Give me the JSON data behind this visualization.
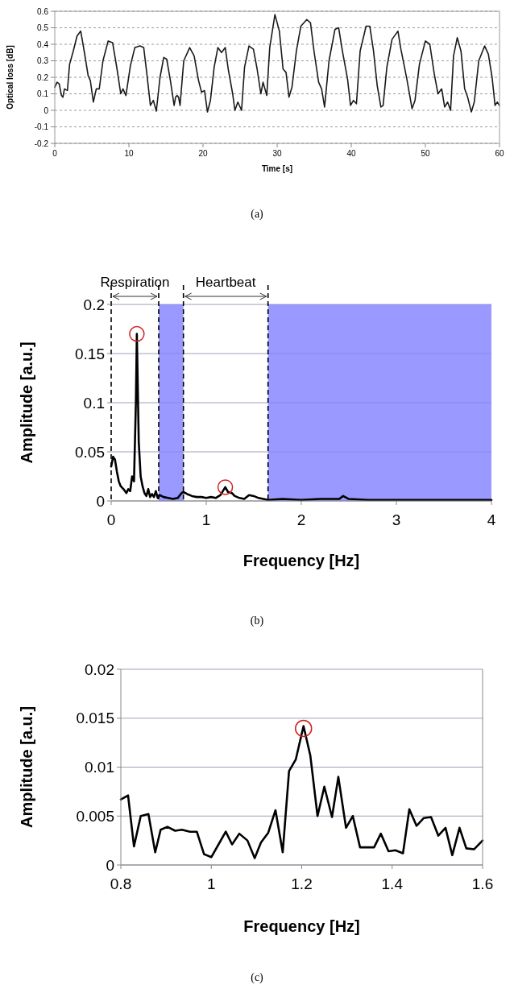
{
  "chart_data": [
    {
      "type": "line",
      "xlabel": "Time [s]",
      "ylabel": "Optical loss [dB]",
      "annotations": [
        "(a)"
      ],
      "xlim": [
        0,
        60
      ],
      "xticks": [
        0,
        10,
        20,
        30,
        40,
        50,
        60
      ],
      "ylim": [
        -0.2,
        0.6
      ],
      "yticks": [
        -0.2,
        -0.1,
        0,
        0.1,
        0.2,
        0.3,
        0.4,
        0.5,
        0.6
      ],
      "grid": "y",
      "line_style": "solid",
      "series": [
        {
          "color": "#1a1a1a",
          "x": [
            0,
            0.3,
            0.6,
            0.9,
            1.1,
            1.3,
            1.7,
            2.0,
            2.5,
            3.0,
            3.5,
            4.0,
            4.5,
            4.8,
            5.2,
            5.6,
            6.0,
            6.5,
            7.2,
            7.8,
            8.4,
            8.9,
            9.2,
            9.6,
            10.2,
            10.8,
            11.5,
            12.0,
            12.4,
            12.9,
            13.3,
            13.7,
            14.2,
            14.7,
            15.1,
            15.6,
            16.1,
            16.3,
            16.5,
            16.7,
            16.9,
            17.4,
            18.2,
            18.8,
            19.4,
            19.8,
            20.2,
            20.6,
            21.0,
            21.5,
            22.0,
            22.5,
            23.0,
            23.4,
            24.0,
            24.3,
            24.7,
            25.2,
            25.6,
            26.2,
            26.8,
            27.3,
            27.8,
            28.1,
            28.6,
            29.0,
            29.7,
            30.3,
            30.8,
            31.2,
            31.6,
            32.0,
            32.6,
            33.2,
            34.0,
            34.5,
            35.0,
            35.6,
            36.0,
            36.4,
            37.0,
            37.8,
            38.3,
            38.8,
            39.5,
            39.9,
            40.3,
            40.7,
            41.2,
            42.0,
            42.5,
            43.0,
            43.5,
            44.0,
            44.3,
            44.8,
            45.5,
            46.3,
            46.7,
            47.5,
            48.2,
            48.6,
            49.2,
            50.0,
            50.6,
            51.2,
            51.7,
            52.2,
            52.6,
            53.0,
            53.4,
            53.8,
            54.3,
            54.8,
            55.3,
            55.7,
            56.2,
            56.6,
            57.2,
            58.0,
            58.5,
            59.0,
            59.4,
            59.7,
            60
          ],
          "values": [
            0.14,
            0.17,
            0.16,
            0.09,
            0.08,
            0.13,
            0.12,
            0.28,
            0.36,
            0.45,
            0.48,
            0.35,
            0.21,
            0.18,
            0.05,
            0.13,
            0.13,
            0.3,
            0.42,
            0.41,
            0.25,
            0.1,
            0.13,
            0.09,
            0.27,
            0.38,
            0.39,
            0.38,
            0.23,
            0.03,
            0.06,
            -0.005,
            0.2,
            0.32,
            0.31,
            0.18,
            0.03,
            0.08,
            0.09,
            0.08,
            0.03,
            0.3,
            0.38,
            0.33,
            0.18,
            0.11,
            0.12,
            -0.01,
            0.06,
            0.26,
            0.38,
            0.35,
            0.38,
            0.25,
            0.1,
            0.0,
            0.05,
            0.0,
            0.26,
            0.39,
            0.37,
            0.25,
            0.1,
            0.17,
            0.09,
            0.38,
            0.58,
            0.48,
            0.25,
            0.23,
            0.08,
            0.14,
            0.36,
            0.51,
            0.55,
            0.53,
            0.35,
            0.17,
            0.13,
            0.02,
            0.3,
            0.49,
            0.5,
            0.36,
            0.19,
            0.03,
            0.06,
            0.04,
            0.36,
            0.51,
            0.51,
            0.36,
            0.15,
            0.02,
            0.03,
            0.26,
            0.43,
            0.48,
            0.37,
            0.19,
            0.01,
            0.06,
            0.28,
            0.42,
            0.4,
            0.22,
            0.1,
            0.13,
            0.02,
            0.05,
            0.0,
            0.33,
            0.44,
            0.36,
            0.13,
            0.08,
            -0.01,
            0.05,
            0.3,
            0.39,
            0.34,
            0.2,
            0.03,
            0.05,
            0.03
          ]
        }
      ]
    },
    {
      "type": "line",
      "xlabel": "Frequency [Hz]",
      "ylabel": "Amplitude [a.u.]",
      "annotations": [
        "Respiration",
        "Heartbeat",
        "(b)"
      ],
      "xlim": [
        0,
        4
      ],
      "xticks": [
        0,
        1,
        2,
        3,
        4
      ],
      "ylim": [
        0,
        0.2
      ],
      "yticks": [
        0,
        0.05,
        0.1,
        0.15,
        0.2
      ],
      "grid": "y",
      "line_style": "solid",
      "ref_lines": [
        {
          "axis": "x",
          "value": 0,
          "color": "#000000",
          "line_style": "dashed"
        },
        {
          "axis": "x",
          "value": 0.5,
          "color": "#000000",
          "line_style": "dashed"
        },
        {
          "axis": "x",
          "value": 0.76,
          "color": "#000000",
          "line_style": "dashed"
        },
        {
          "axis": "x",
          "value": 1.65,
          "color": "#000000",
          "line_style": "dashed"
        }
      ],
      "bands": [
        {
          "axis": "x",
          "from": 0.5,
          "to": 0.76,
          "color": "#8080ff"
        },
        {
          "axis": "x",
          "from": 1.65,
          "to": 4,
          "color": "#8080ff"
        }
      ],
      "series": [
        {
          "color": "#000000",
          "x": [
            0,
            0.02,
            0.04,
            0.06,
            0.08,
            0.1,
            0.13,
            0.16,
            0.18,
            0.2,
            0.22,
            0.24,
            0.26,
            0.27,
            0.29,
            0.31,
            0.33,
            0.35,
            0.37,
            0.39,
            0.41,
            0.43,
            0.45,
            0.47,
            0.49,
            0.51,
            0.55,
            0.6,
            0.65,
            0.7,
            0.74,
            0.76,
            0.8,
            0.85,
            0.9,
            0.95,
            1.0,
            1.05,
            1.1,
            1.15,
            1.2,
            1.23,
            1.27,
            1.3,
            1.35,
            1.4,
            1.45,
            1.5,
            1.55,
            1.6,
            1.65,
            1.8,
            2.0,
            2.2,
            2.4,
            2.44,
            2.5,
            2.7,
            3.0,
            3.3,
            3.6,
            4.0
          ],
          "values": [
            0.035,
            0.045,
            0.042,
            0.03,
            0.02,
            0.015,
            0.012,
            0.008,
            0.012,
            0.01,
            0.025,
            0.02,
            0.1,
            0.17,
            0.06,
            0.025,
            0.015,
            0.008,
            0.005,
            0.012,
            0.004,
            0.007,
            0.004,
            0.01,
            0.003,
            0.006,
            0.004,
            0.003,
            0.002,
            0.003,
            0.008,
            0.009,
            0.007,
            0.005,
            0.004,
            0.004,
            0.003,
            0.004,
            0.003,
            0.006,
            0.014,
            0.009,
            0.008,
            0.005,
            0.003,
            0.002,
            0.006,
            0.005,
            0.003,
            0.002,
            0.001,
            0.002,
            0.001,
            0.002,
            0.002,
            0.005,
            0.002,
            0.001,
            0.001,
            0.001,
            0.001,
            0.001
          ]
        }
      ]
    },
    {
      "type": "line",
      "xlabel": "Frequency [Hz]",
      "ylabel": "Amplitude [a.u.]",
      "annotations": [
        "(c)"
      ],
      "xlim": [
        0.8,
        1.6
      ],
      "xticks": [
        0.8,
        1,
        1.2,
        1.4,
        1.6
      ],
      "ylim": [
        0,
        0.02
      ],
      "yticks": [
        0,
        0.005,
        0.01,
        0.015,
        0.02
      ],
      "grid": "y",
      "line_style": "solid",
      "series": [
        {
          "color": "#000000",
          "x": [
            0.8,
            0.816,
            0.829,
            0.844,
            0.861,
            0.876,
            0.888,
            0.903,
            0.92,
            0.935,
            0.953,
            0.968,
            0.984,
            1.0,
            1.016,
            1.032,
            1.046,
            1.062,
            1.08,
            1.096,
            1.11,
            1.126,
            1.142,
            1.158,
            1.172,
            1.187,
            1.204,
            1.219,
            1.235,
            1.25,
            1.267,
            1.281,
            1.298,
            1.313,
            1.329,
            1.345,
            1.36,
            1.375,
            1.392,
            1.407,
            1.424,
            1.438,
            1.454,
            1.47,
            1.486,
            1.502,
            1.518,
            1.533,
            1.549,
            1.564,
            1.581,
            1.6
          ],
          "values": [
            0.0067,
            0.0071,
            0.0019,
            0.005,
            0.0052,
            0.0013,
            0.0036,
            0.0039,
            0.0035,
            0.0036,
            0.0034,
            0.0034,
            0.0011,
            0.0008,
            0.0021,
            0.0034,
            0.0021,
            0.0032,
            0.0025,
            0.0007,
            0.0023,
            0.0033,
            0.0056,
            0.0013,
            0.0096,
            0.0108,
            0.0142,
            0.0112,
            0.005,
            0.008,
            0.0049,
            0.009,
            0.0038,
            0.005,
            0.0018,
            0.0018,
            0.0018,
            0.0032,
            0.0014,
            0.0015,
            0.0012,
            0.0057,
            0.004,
            0.0048,
            0.0049,
            0.003,
            0.0038,
            0.001,
            0.0038,
            0.0017,
            0.0016,
            0.0025
          ]
        }
      ]
    }
  ]
}
